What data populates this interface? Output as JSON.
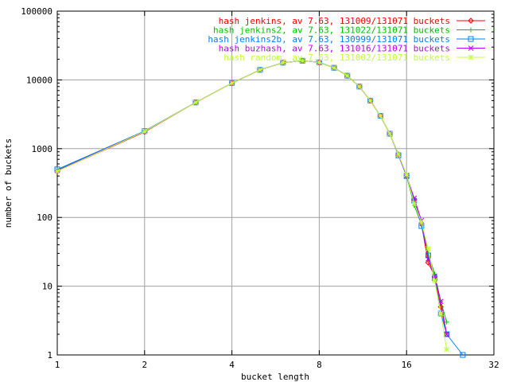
{
  "chart_data": {
    "type": "line",
    "title": "",
    "xlabel": "bucket length",
    "ylabel": "number of buckets",
    "x_scale": "log2",
    "y_scale": "log10",
    "xlim": [
      1,
      32
    ],
    "ylim": [
      1,
      100000
    ],
    "x_ticks": [
      1,
      2,
      4,
      8,
      16,
      32
    ],
    "x_tick_labels": [
      "1",
      "2",
      "4",
      "8",
      "16",
      "32"
    ],
    "y_ticks": [
      1,
      10,
      100,
      1000,
      10000,
      100000
    ],
    "y_tick_labels": [
      "1",
      "10",
      "100",
      "1000",
      "10000",
      "100000"
    ],
    "grid": true,
    "legend_position": "top-right",
    "series": [
      {
        "name": "hash jenkins, av 7.63, 131009/131071 buckets",
        "color": "#ff0000",
        "marker": "diamond",
        "points": [
          [
            1,
            470
          ],
          [
            2,
            1750
          ],
          [
            3,
            4700
          ],
          [
            4,
            9000
          ],
          [
            5,
            14000
          ],
          [
            6,
            17800
          ],
          [
            7,
            19000
          ],
          [
            8,
            18000
          ],
          [
            9,
            15000
          ],
          [
            10,
            11500
          ],
          [
            11,
            8000
          ],
          [
            12,
            5000
          ],
          [
            13,
            3000
          ],
          [
            14,
            1650
          ],
          [
            15,
            830
          ],
          [
            16,
            410
          ],
          [
            17,
            180
          ],
          [
            18,
            80
          ],
          [
            19,
            22
          ],
          [
            20,
            14
          ],
          [
            21,
            5
          ],
          [
            22,
            2
          ]
        ]
      },
      {
        "name": "hash jenkins2, av 7.63, 131022/131071 buckets",
        "color": "#00c000",
        "marker": "plus",
        "points": [
          [
            1,
            490
          ],
          [
            2,
            1800
          ],
          [
            3,
            4700
          ],
          [
            4,
            9000
          ],
          [
            5,
            14000
          ],
          [
            6,
            17800
          ],
          [
            7,
            19000
          ],
          [
            8,
            18000
          ],
          [
            9,
            15000
          ],
          [
            10,
            11500
          ],
          [
            11,
            8000
          ],
          [
            12,
            5000
          ],
          [
            13,
            3000
          ],
          [
            14,
            1650
          ],
          [
            15,
            830
          ],
          [
            16,
            400
          ],
          [
            17,
            150
          ],
          [
            18,
            80
          ],
          [
            19,
            30
          ],
          [
            20,
            15
          ],
          [
            21,
            6
          ],
          [
            22,
            3
          ]
        ]
      },
      {
        "name": "hash jenkins2b, av 7.63, 130999/131071 buckets",
        "color": "#0080ff",
        "marker": "square",
        "points": [
          [
            1,
            500
          ],
          [
            2,
            1800
          ],
          [
            3,
            4700
          ],
          [
            4,
            9000
          ],
          [
            5,
            14000
          ],
          [
            6,
            17800
          ],
          [
            7,
            19000
          ],
          [
            8,
            18000
          ],
          [
            9,
            15000
          ],
          [
            10,
            11500
          ],
          [
            11,
            8000
          ],
          [
            12,
            5000
          ],
          [
            13,
            3000
          ],
          [
            14,
            1650
          ],
          [
            15,
            800
          ],
          [
            16,
            400
          ],
          [
            17,
            175
          ],
          [
            18,
            75
          ],
          [
            19,
            28
          ],
          [
            20,
            13
          ],
          [
            21,
            4
          ],
          [
            22,
            2
          ],
          [
            25,
            1
          ]
        ]
      },
      {
        "name": "hash buzhash, av 7.63, 131016/131071 buckets",
        "color": "#c000ff",
        "marker": "cross",
        "points": [
          [
            1,
            480
          ],
          [
            2,
            1780
          ],
          [
            3,
            4700
          ],
          [
            4,
            9000
          ],
          [
            5,
            14000
          ],
          [
            6,
            17800
          ],
          [
            7,
            19000
          ],
          [
            8,
            18000
          ],
          [
            9,
            15000
          ],
          [
            10,
            11500
          ],
          [
            11,
            8000
          ],
          [
            12,
            5000
          ],
          [
            13,
            3000
          ],
          [
            14,
            1650
          ],
          [
            15,
            820
          ],
          [
            16,
            400
          ],
          [
            17,
            190
          ],
          [
            18,
            90
          ],
          [
            19,
            25
          ],
          [
            20,
            14
          ],
          [
            21,
            6
          ],
          [
            22,
            2
          ]
        ]
      },
      {
        "name": "hash random, av 7.63, 131002/131071 buckets",
        "color": "#c0ff40",
        "marker": "star",
        "points": [
          [
            1,
            470
          ],
          [
            2,
            1780
          ],
          [
            3,
            4700
          ],
          [
            4,
            9000
          ],
          [
            5,
            14000
          ],
          [
            6,
            17800
          ],
          [
            7,
            19000
          ],
          [
            8,
            18000
          ],
          [
            9,
            15000
          ],
          [
            10,
            11500
          ],
          [
            11,
            8000
          ],
          [
            12,
            5000
          ],
          [
            13,
            3000
          ],
          [
            14,
            1650
          ],
          [
            15,
            830
          ],
          [
            16,
            420
          ],
          [
            17,
            160
          ],
          [
            18,
            85
          ],
          [
            19,
            35
          ],
          [
            20,
            12
          ],
          [
            21,
            4
          ],
          [
            22,
            1.2
          ]
        ]
      }
    ]
  }
}
